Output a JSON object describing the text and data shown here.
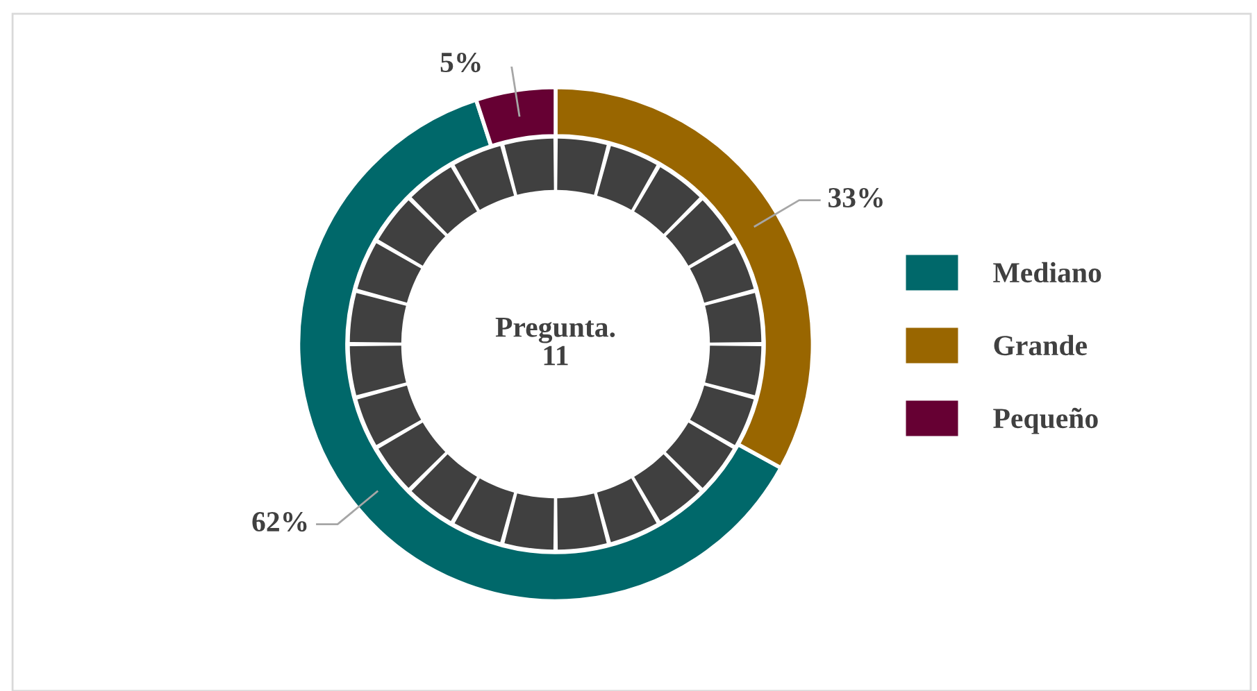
{
  "chart_data": {
    "type": "donut",
    "title": "Pregunta.\n11",
    "categories": [
      "Mediano",
      "Grande",
      "Pequeño"
    ],
    "values": [
      62,
      33,
      5
    ],
    "colors": [
      "#00686a",
      "#996600",
      "#660033"
    ],
    "value_labels": [
      "62%",
      "33%",
      "5%"
    ],
    "legend": "right"
  }
}
